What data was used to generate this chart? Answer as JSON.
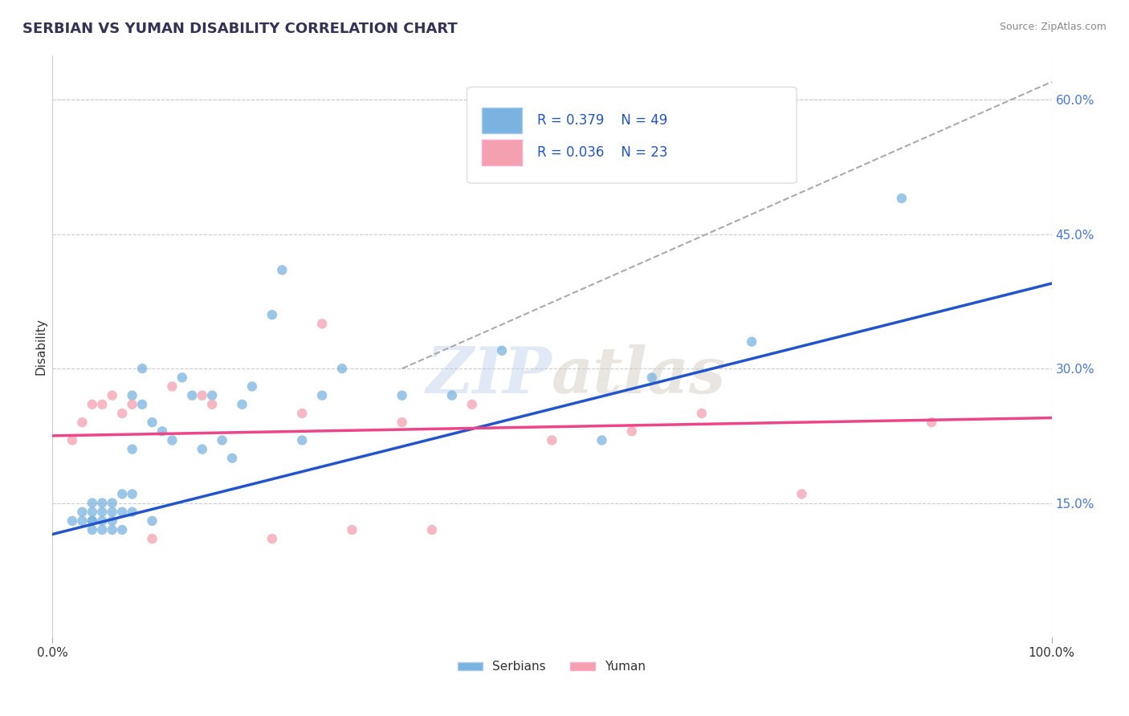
{
  "title": "SERBIAN VS YUMAN DISABILITY CORRELATION CHART",
  "source": "Source: ZipAtlas.com",
  "xlabel": "",
  "ylabel": "Disability",
  "xlim": [
    0,
    1
  ],
  "ylim": [
    0,
    0.65
  ],
  "yticks_right": [
    0.15,
    0.3,
    0.45,
    0.6
  ],
  "ytick_right_labels": [
    "15.0%",
    "30.0%",
    "45.0%",
    "60.0%"
  ],
  "grid_color": "#cccccc",
  "background_color": "#ffffff",
  "serbian_color": "#7ab3e0",
  "yuman_color": "#f4a0b0",
  "serbian_line_color": "#2255cc",
  "yuman_line_color": "#ee4488",
  "legend_R1": "R = 0.379",
  "legend_N1": "N = 49",
  "legend_R2": "R = 0.036",
  "legend_N2": "N = 23",
  "watermark_zip": "ZIP",
  "watermark_atlas": "atlas",
  "serbian_x": [
    0.02,
    0.03,
    0.03,
    0.04,
    0.04,
    0.04,
    0.04,
    0.04,
    0.05,
    0.05,
    0.05,
    0.05,
    0.06,
    0.06,
    0.06,
    0.06,
    0.07,
    0.07,
    0.07,
    0.08,
    0.08,
    0.08,
    0.08,
    0.09,
    0.09,
    0.1,
    0.1,
    0.11,
    0.12,
    0.13,
    0.14,
    0.15,
    0.16,
    0.17,
    0.18,
    0.19,
    0.2,
    0.22,
    0.23,
    0.25,
    0.27,
    0.29,
    0.35,
    0.4,
    0.45,
    0.55,
    0.6,
    0.7,
    0.85
  ],
  "serbian_y": [
    0.13,
    0.14,
    0.13,
    0.12,
    0.13,
    0.14,
    0.15,
    0.13,
    0.12,
    0.13,
    0.14,
    0.15,
    0.12,
    0.13,
    0.14,
    0.15,
    0.12,
    0.14,
    0.16,
    0.14,
    0.16,
    0.21,
    0.27,
    0.26,
    0.3,
    0.13,
    0.24,
    0.23,
    0.22,
    0.29,
    0.27,
    0.21,
    0.27,
    0.22,
    0.2,
    0.26,
    0.28,
    0.36,
    0.41,
    0.22,
    0.27,
    0.3,
    0.27,
    0.27,
    0.32,
    0.22,
    0.29,
    0.33,
    0.49
  ],
  "yuman_x": [
    0.02,
    0.03,
    0.04,
    0.05,
    0.06,
    0.07,
    0.08,
    0.1,
    0.12,
    0.15,
    0.16,
    0.22,
    0.25,
    0.27,
    0.3,
    0.35,
    0.38,
    0.42,
    0.5,
    0.58,
    0.65,
    0.75,
    0.88
  ],
  "yuman_y": [
    0.22,
    0.24,
    0.26,
    0.26,
    0.27,
    0.25,
    0.26,
    0.11,
    0.28,
    0.27,
    0.26,
    0.11,
    0.25,
    0.35,
    0.12,
    0.24,
    0.12,
    0.26,
    0.22,
    0.23,
    0.25,
    0.16,
    0.24
  ],
  "serbian_line_y_intercept": 0.115,
  "serbian_line_slope": 0.28,
  "yuman_line_y_intercept": 0.225,
  "yuman_line_slope": 0.02,
  "ref_line_x": [
    0.35,
    1.0
  ],
  "ref_line_y_start": 0.3,
  "ref_line_y_end": 0.62
}
